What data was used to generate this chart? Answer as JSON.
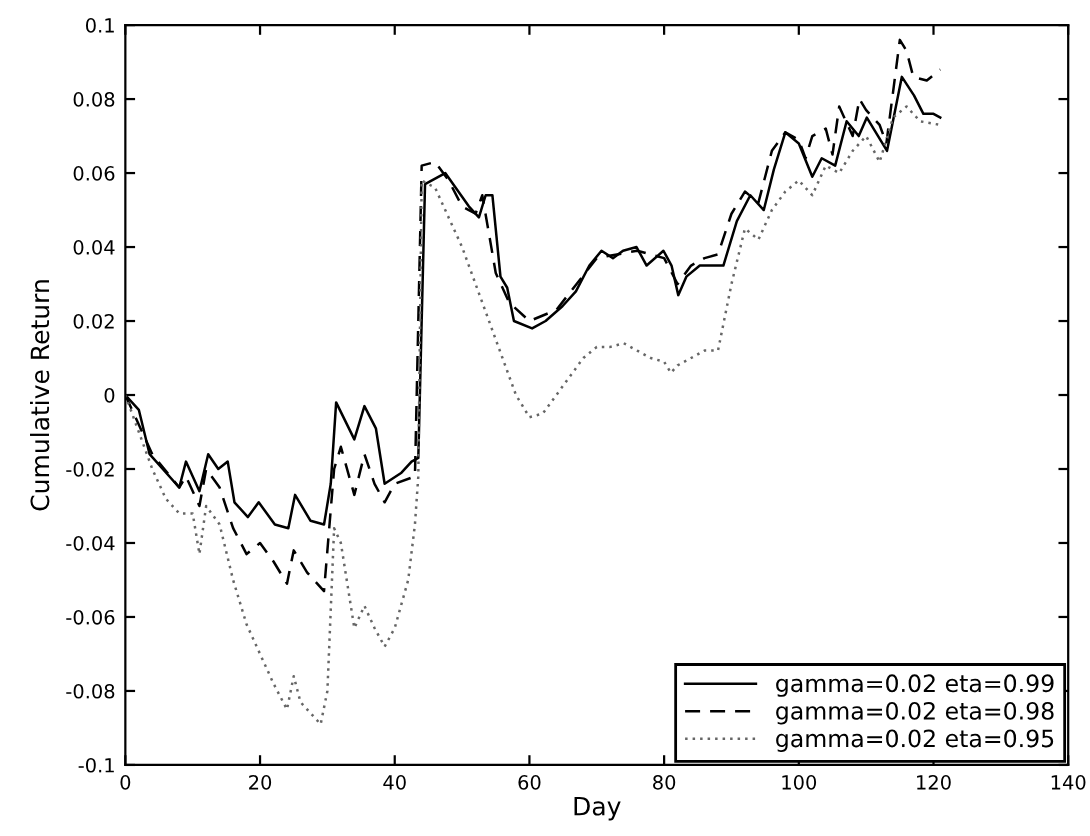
{
  "chart_data": {
    "type": "line",
    "xlabel": "Day",
    "ylabel": "Cumulative Return",
    "xlim": [
      0,
      140
    ],
    "ylim": [
      -0.1,
      0.1
    ],
    "xticks": [
      0,
      20,
      40,
      60,
      80,
      100,
      120,
      140
    ],
    "yticks": [
      -0.1,
      -0.08,
      -0.06,
      -0.04,
      -0.02,
      0,
      0.02,
      0.04,
      0.06,
      0.08,
      0.1
    ],
    "grid": false,
    "legend": "bottom right",
    "series": [
      {
        "name": "gamma=0.02 eta=0.99",
        "color": "#000000",
        "line_style": "solid",
        "x": [
          0,
          2,
          3.6,
          8,
          9,
          11,
          12.3,
          13.8,
          15.2,
          16.2,
          18.2,
          19.8,
          22.2,
          24.2,
          25.2,
          27.5,
          29.5,
          30.5,
          31.3,
          34,
          35.5,
          37.2,
          38.5,
          41,
          42.5,
          43.5,
          44.5,
          47.5,
          51,
          52.5,
          53.5,
          54.5,
          55.7,
          56.7,
          57.7,
          60.4,
          62.4,
          64.9,
          66.9,
          68.9,
          70.7,
          72.4,
          73.9,
          75.9,
          77.4,
          79.9,
          81.1,
          82.1,
          83.3,
          85.3,
          88.8,
          90.8,
          92.8,
          94.8,
          96.3,
          98,
          100,
          102,
          103.4,
          105.4,
          107.1,
          108.9,
          110.1,
          113.1,
          115.3,
          117.1,
          118.5,
          120,
          121
        ],
        "values": [
          0,
          -0.004,
          -0.016,
          -0.025,
          -0.018,
          -0.026,
          -0.016,
          -0.02,
          -0.018,
          -0.029,
          -0.033,
          -0.029,
          -0.035,
          -0.036,
          -0.027,
          -0.034,
          -0.035,
          -0.024,
          -0.002,
          -0.012,
          -0.003,
          -0.009,
          -0.024,
          -0.021,
          -0.018,
          -0.017,
          0.057,
          0.06,
          0.051,
          0.048,
          0.054,
          0.054,
          0.032,
          0.029,
          0.02,
          0.018,
          0.02,
          0.024,
          0.028,
          0.035,
          0.039,
          0.037,
          0.039,
          0.04,
          0.035,
          0.039,
          0.035,
          0.027,
          0.032,
          0.035,
          0.035,
          0.047,
          0.054,
          0.05,
          0.061,
          0.071,
          0.068,
          0.059,
          0.064,
          0.062,
          0.074,
          0.07,
          0.075,
          0.066,
          0.086,
          0.081,
          0.076,
          0.076,
          0.075
        ]
      },
      {
        "name": "gamma=0.02 eta=0.98",
        "color": "#000000",
        "line_style": "dashed",
        "x": [
          0,
          4,
          8,
          9,
          11,
          12,
          14,
          16,
          18,
          20,
          22,
          24,
          25,
          27,
          29.5,
          31,
          32,
          34,
          35.5,
          37,
          38.5,
          40,
          43,
          44,
          46,
          48,
          50,
          52,
          53,
          55,
          57,
          60,
          64,
          70,
          76,
          80,
          82,
          84,
          86,
          88,
          90,
          92,
          94,
          96,
          98,
          100,
          101,
          102,
          104,
          105,
          106,
          108,
          109,
          110,
          112,
          113,
          115,
          116,
          117,
          119,
          121
        ],
        "values": [
          0,
          -0.016,
          -0.025,
          -0.022,
          -0.03,
          -0.02,
          -0.025,
          -0.036,
          -0.043,
          -0.04,
          -0.045,
          -0.051,
          -0.042,
          -0.048,
          -0.053,
          -0.02,
          -0.014,
          -0.027,
          -0.016,
          -0.024,
          -0.029,
          -0.024,
          -0.022,
          0.062,
          0.063,
          0.058,
          0.051,
          0.049,
          0.054,
          0.033,
          0.025,
          0.02,
          0.023,
          0.037,
          0.039,
          0.037,
          0.03,
          0.035,
          0.037,
          0.038,
          0.049,
          0.055,
          0.052,
          0.066,
          0.071,
          0.069,
          0.064,
          0.07,
          0.072,
          0.065,
          0.078,
          0.07,
          0.08,
          0.077,
          0.073,
          0.068,
          0.096,
          0.093,
          0.086,
          0.085,
          0.088
        ]
      },
      {
        "name": "gamma=0.02 eta=0.95",
        "color": "#666666",
        "line_style": "dotted",
        "x": [
          0,
          4,
          6,
          8,
          10,
          11,
          12,
          14,
          16,
          18,
          20,
          22,
          24,
          25,
          26,
          28,
          29,
          30,
          31,
          32,
          34,
          35.5,
          37,
          38.5,
          40,
          42,
          43,
          43.5,
          44,
          46,
          48,
          50,
          52,
          54,
          56,
          58,
          60,
          62,
          64,
          68,
          70,
          72,
          74,
          76,
          78,
          80,
          81,
          82,
          84,
          86,
          88,
          90,
          92,
          94,
          96,
          98,
          100,
          102,
          104,
          106,
          108,
          110,
          112,
          114,
          116,
          118,
          121
        ],
        "values": [
          0,
          -0.02,
          -0.028,
          -0.032,
          -0.032,
          -0.043,
          -0.03,
          -0.035,
          -0.05,
          -0.062,
          -0.07,
          -0.078,
          -0.085,
          -0.076,
          -0.083,
          -0.087,
          -0.089,
          -0.08,
          -0.036,
          -0.04,
          -0.063,
          -0.057,
          -0.063,
          -0.068,
          -0.063,
          -0.05,
          -0.035,
          -0.022,
          0.058,
          0.056,
          0.048,
          0.04,
          0.03,
          0.02,
          0.01,
          0,
          -0.006,
          -0.005,
          0,
          0.01,
          0.013,
          0.013,
          0.014,
          0.012,
          0.01,
          0.009,
          0.006,
          0.008,
          0.01,
          0.012,
          0.012,
          0.03,
          0.045,
          0.042,
          0.05,
          0.055,
          0.058,
          0.054,
          0.062,
          0.06,
          0.066,
          0.07,
          0.063,
          0.075,
          0.078,
          0.074,
          0.073
        ]
      }
    ]
  }
}
